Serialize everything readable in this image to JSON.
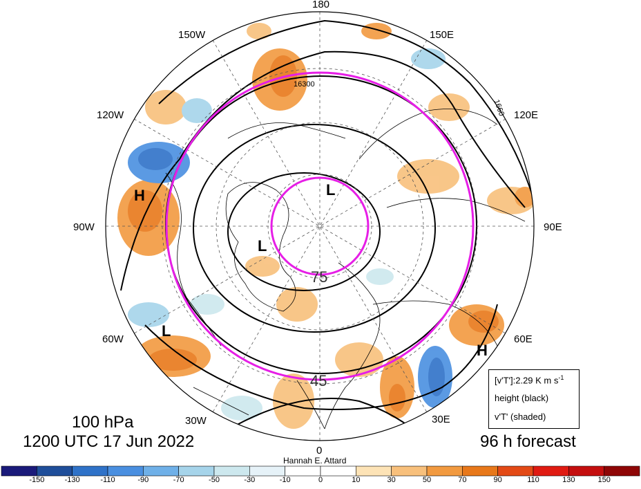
{
  "map": {
    "projection": "polar stereographic (north pole)",
    "longitude_labels": [
      "180",
      "150E",
      "120E",
      "90E",
      "60E",
      "30E",
      "0",
      "30W",
      "60W",
      "90W",
      "120W",
      "150W"
    ],
    "latitude_circle_labels": [
      "75",
      "45"
    ],
    "contour_label": "16300",
    "contour_label_2": "1660",
    "pressure_systems": [
      {
        "type": "H",
        "region": "western North America"
      },
      {
        "type": "L",
        "region": "near North Pole"
      },
      {
        "type": "L",
        "region": "Greenland"
      },
      {
        "type": "L",
        "region": "western Atlantic"
      },
      {
        "type": "H",
        "region": "Middle East / Caspian"
      }
    ]
  },
  "title": {
    "level": "100 hPa",
    "valid_time": "1200 UTC 17 Jun 2022",
    "forecast": "96 h forecast",
    "author": "Hannah E. Attard"
  },
  "legend": {
    "line1": "[v'T']:2.29 K m s",
    "line1_sup": "-1",
    "line2": "height (black)",
    "line3": "v'T' (shaded)"
  },
  "colorbar": {
    "tick_labels": [
      "-150",
      "-130",
      "-110",
      "-90",
      "-70",
      "-50",
      "-30",
      "-10",
      "0",
      "10",
      "30",
      "50",
      "70",
      "90",
      "110",
      "130",
      "150"
    ],
    "colors": [
      "#1a1a7a",
      "#1f4e9a",
      "#2f72c8",
      "#4a8fe0",
      "#6fb0e8",
      "#a6d4ea",
      "#cde8ee",
      "#e6f2f8",
      "#ffffff",
      "#ffffff",
      "#fde3b6",
      "#f8c07c",
      "#f29a40",
      "#e8781a",
      "#e34a16",
      "#e01b12",
      "#c40e0e",
      "#8e0606"
    ]
  }
}
